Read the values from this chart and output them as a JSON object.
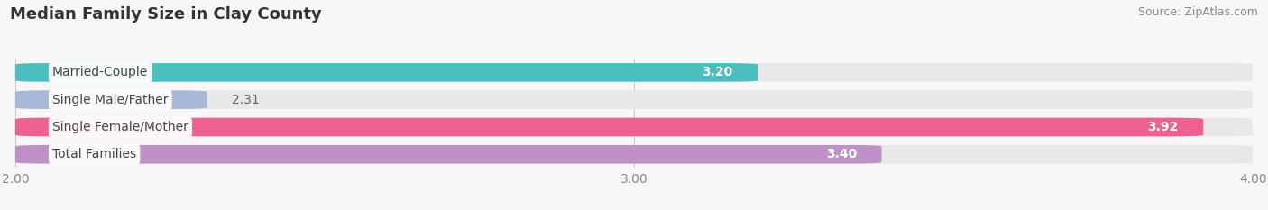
{
  "title": "Median Family Size in Clay County",
  "source": "Source: ZipAtlas.com",
  "categories": [
    "Married-Couple",
    "Single Male/Father",
    "Single Female/Mother",
    "Total Families"
  ],
  "values": [
    3.2,
    2.31,
    3.92,
    3.4
  ],
  "bar_colors": [
    "#4BBFBF",
    "#A8B8D8",
    "#F06090",
    "#C090C8"
  ],
  "bar_bg_color": "#E8E8E8",
  "xlim_min": 2.0,
  "xlim_max": 4.0,
  "xticks": [
    2.0,
    3.0,
    4.0
  ],
  "xtick_labels": [
    "2.00",
    "3.00",
    "4.00"
  ],
  "bar_height": 0.68,
  "figsize": [
    14.06,
    2.33
  ],
  "dpi": 100,
  "title_fontsize": 13,
  "label_fontsize": 10,
  "value_fontsize": 10,
  "tick_fontsize": 10,
  "source_fontsize": 9,
  "background_color": "#F7F7F7"
}
